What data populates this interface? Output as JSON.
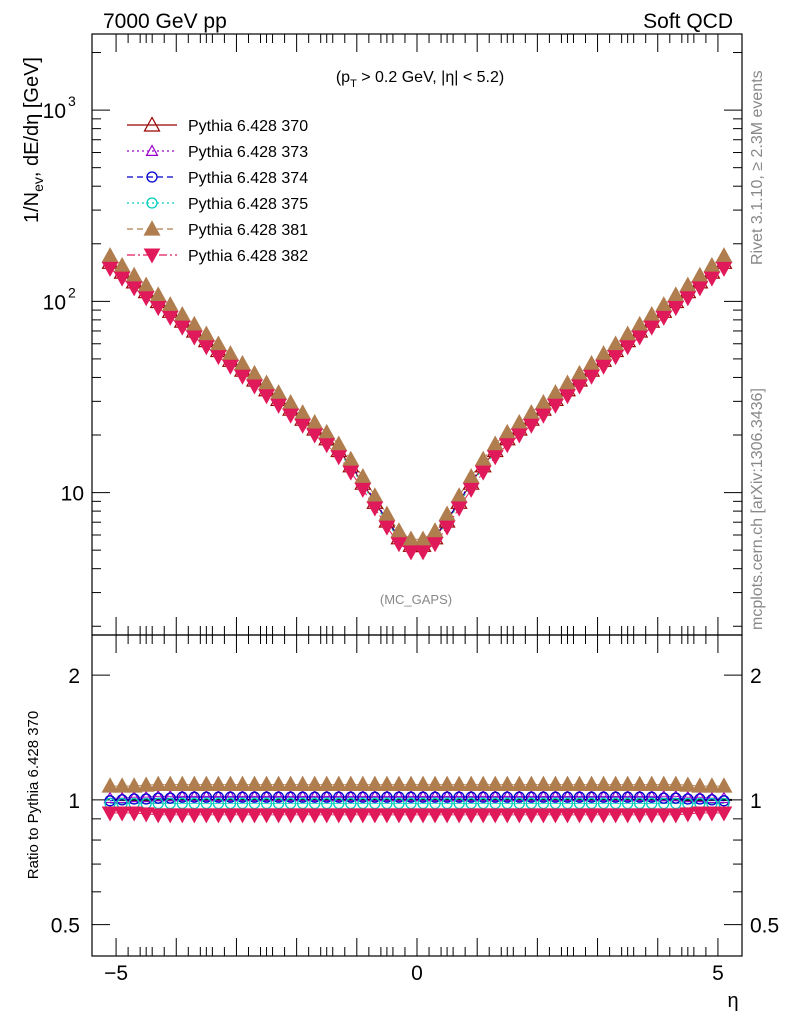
{
  "header": {
    "left": "7000 GeV pp",
    "right": "Soft QCD"
  },
  "side_text": {
    "rivet": "Rivet 3.1.10, ≥ 2.3M events",
    "mcplots": "mcplots.cern.ch [arXiv:1306.3436]"
  },
  "annotations": {
    "cut_label": "(p_T > 0.2 GeV, |η| < 5.2)",
    "cut_pre": "(p",
    "cut_sub": "T",
    "cut_post": " > 0.2 GeV, |η| < 5.2)",
    "watermark": "(MC_GAPS)"
  },
  "chart_data": [
    {
      "type": "scatter",
      "panel": "main",
      "ylabel": "1/N_ev, dE/dη [GeV]",
      "ylabel_pre": "1/N",
      "ylabel_sub": "ev",
      "ylabel_post": ", dE/dη [GeV]",
      "yscale": "log",
      "xlim": [
        -5.4,
        5.4
      ],
      "ylim": [
        1.8,
        2500
      ],
      "y_tick_labels": [
        {
          "value": 10,
          "label": "10"
        },
        {
          "value": 100,
          "label": "10",
          "exp": "2"
        },
        {
          "value": 1000,
          "label": "10",
          "exp": "3"
        }
      ],
      "legend_position": "top-left",
      "x": [
        -5.1,
        -4.9,
        -4.7,
        -4.5,
        -4.3,
        -4.1,
        -3.9,
        -3.7,
        -3.5,
        -3.3,
        -3.1,
        -2.9,
        -2.7,
        -2.5,
        -2.3,
        -2.1,
        -1.9,
        -1.7,
        -1.5,
        -1.3,
        -1.1,
        -0.9,
        -0.7,
        -0.5,
        -0.3,
        -0.1,
        0.1,
        0.3,
        0.5,
        0.7,
        0.9,
        1.1,
        1.3,
        1.5,
        1.7,
        1.9,
        2.1,
        2.3,
        2.5,
        2.7,
        2.9,
        3.1,
        3.3,
        3.5,
        3.7,
        3.9,
        4.1,
        4.3,
        4.5,
        4.7,
        4.9,
        5.1
      ],
      "series": [
        {
          "name": "Pythia 6.428 370",
          "color": "#990000",
          "marker": "triangle-open",
          "dash": "solid",
          "values": [
            160.0,
            142.2,
            126.4,
            112.3,
            99.8,
            88.7,
            78.8,
            70.0,
            62.3,
            55.3,
            49.2,
            43.7,
            38.8,
            34.5,
            30.7,
            27.3,
            24.2,
            21.5,
            19.1,
            16.6,
            13.8,
            11.2,
            8.9,
            7.1,
            5.8,
            5.3,
            5.3,
            5.8,
            7.1,
            8.9,
            11.2,
            13.8,
            16.6,
            19.1,
            21.5,
            24.2,
            27.3,
            30.7,
            34.5,
            38.8,
            43.7,
            49.2,
            55.3,
            62.3,
            70.0,
            78.8,
            88.7,
            99.8,
            112.3,
            126.4,
            142.2,
            160.0
          ]
        },
        {
          "name": "Pythia 6.428 373",
          "color": "#9900cc",
          "marker": "triangle-open-small",
          "dash": "dot",
          "values": [
            163.2,
            145.0,
            128.9,
            114.5,
            101.8,
            90.5,
            80.4,
            71.4,
            63.5,
            56.4,
            50.2,
            44.6,
            39.6,
            35.2,
            31.3,
            27.8,
            24.7,
            21.9,
            19.5,
            16.9,
            14.1,
            11.4,
            9.1,
            7.2,
            5.9,
            5.4,
            5.4,
            5.9,
            7.2,
            9.1,
            11.4,
            14.1,
            16.9,
            19.5,
            21.9,
            24.7,
            27.8,
            31.3,
            35.2,
            39.6,
            44.6,
            50.2,
            56.4,
            63.5,
            71.4,
            80.4,
            90.5,
            101.8,
            114.5,
            128.9,
            145.0,
            163.2
          ]
        },
        {
          "name": "Pythia 6.428 374",
          "color": "#0000cc",
          "marker": "circle-open",
          "dash": "dash",
          "values": [
            161.6,
            143.6,
            127.7,
            113.4,
            100.8,
            89.6,
            79.6,
            70.7,
            62.9,
            55.9,
            49.7,
            44.1,
            39.2,
            34.8,
            31.0,
            27.6,
            24.4,
            21.7,
            19.3,
            16.8,
            13.9,
            11.3,
            9.0,
            7.2,
            5.9,
            5.4,
            5.4,
            5.9,
            7.2,
            9.0,
            11.3,
            13.9,
            16.8,
            19.3,
            21.7,
            24.4,
            27.6,
            31.0,
            34.8,
            39.2,
            44.1,
            49.7,
            55.9,
            62.9,
            70.7,
            79.6,
            89.6,
            100.8,
            113.4,
            127.7,
            143.6,
            161.6
          ]
        },
        {
          "name": "Pythia 6.428 375",
          "color": "#00ccbb",
          "marker": "circle-open",
          "dash": "dot",
          "values": [
            156.8,
            139.4,
            123.9,
            110.1,
            97.8,
            86.9,
            77.2,
            68.6,
            61.1,
            54.2,
            48.2,
            42.8,
            38.0,
            33.8,
            30.1,
            26.8,
            23.7,
            21.1,
            18.7,
            16.3,
            13.5,
            11.0,
            8.7,
            7.0,
            5.7,
            5.2,
            5.2,
            5.7,
            7.0,
            8.7,
            11.0,
            13.5,
            16.3,
            18.7,
            21.1,
            23.7,
            26.8,
            30.1,
            33.8,
            38.0,
            42.8,
            48.2,
            54.2,
            61.1,
            68.6,
            77.2,
            86.9,
            97.8,
            110.1,
            123.9,
            139.4,
            156.8
          ]
        },
        {
          "name": "Pythia 6.428 381",
          "color": "#b07d4f",
          "marker": "triangle-filled",
          "dash": "dash",
          "values": [
            172.8,
            153.6,
            136.5,
            121.3,
            107.8,
            95.8,
            85.1,
            75.6,
            67.3,
            59.7,
            53.1,
            47.2,
            41.9,
            37.3,
            33.2,
            29.5,
            26.1,
            23.2,
            20.6,
            17.9,
            14.9,
            12.1,
            9.6,
            7.7,
            6.3,
            5.7,
            5.7,
            6.3,
            7.7,
            9.6,
            12.1,
            14.9,
            17.9,
            20.6,
            23.2,
            26.1,
            29.5,
            33.2,
            37.3,
            41.9,
            47.2,
            53.1,
            59.7,
            67.3,
            75.6,
            85.1,
            95.8,
            107.8,
            121.3,
            136.5,
            153.6,
            172.8
          ]
        },
        {
          "name": "Pythia 6.428 382",
          "color": "#e0195a",
          "marker": "triangle-down-filled",
          "dash": "dashdot",
          "values": [
            148.8,
            132.2,
            117.6,
            104.4,
            92.8,
            82.5,
            73.3,
            65.1,
            57.9,
            51.4,
            45.8,
            40.6,
            36.1,
            32.1,
            28.6,
            25.4,
            22.5,
            20.0,
            17.8,
            15.4,
            12.8,
            10.4,
            8.3,
            6.6,
            5.4,
            4.9,
            4.9,
            5.4,
            6.6,
            8.3,
            10.4,
            12.8,
            15.4,
            17.8,
            20.0,
            22.5,
            25.4,
            28.6,
            32.1,
            36.1,
            40.6,
            45.8,
            51.4,
            57.9,
            65.1,
            73.3,
            82.5,
            92.8,
            104.4,
            117.6,
            132.2,
            148.8
          ]
        }
      ]
    },
    {
      "type": "scatter",
      "panel": "ratio",
      "ylabel": "Ratio to Pythia 6.428 370",
      "xlabel": "η",
      "yscale": "log",
      "xlim": [
        -5.4,
        5.4
      ],
      "ylim": [
        0.42,
        2.5
      ],
      "y_tick_labels": [
        {
          "value": 0.5,
          "label": "0.5"
        },
        {
          "value": 1,
          "label": "1"
        },
        {
          "value": 2,
          "label": "2"
        }
      ],
      "x_tick_labels": [
        {
          "value": -5,
          "label": "−5"
        },
        {
          "value": 0,
          "label": "0"
        },
        {
          "value": 5,
          "label": "5"
        }
      ],
      "x": [
        -5.1,
        -4.9,
        -4.7,
        -4.5,
        -4.3,
        -4.1,
        -3.9,
        -3.7,
        -3.5,
        -3.3,
        -3.1,
        -2.9,
        -2.7,
        -2.5,
        -2.3,
        -2.1,
        -1.9,
        -1.7,
        -1.5,
        -1.3,
        -1.1,
        -0.9,
        -0.7,
        -0.5,
        -0.3,
        -0.1,
        0.1,
        0.3,
        0.5,
        0.7,
        0.9,
        1.1,
        1.3,
        1.5,
        1.7,
        1.9,
        2.1,
        2.3,
        2.5,
        2.7,
        2.9,
        3.1,
        3.3,
        3.5,
        3.7,
        3.9,
        4.1,
        4.3,
        4.5,
        4.7,
        4.9,
        5.1
      ],
      "series": [
        {
          "name": "Pythia 6.428 370",
          "color": "#990000",
          "marker": "line",
          "values": [
            1.0,
            1.0,
            1.0,
            1.0,
            1.0,
            1.0,
            1.0,
            1.0,
            1.0,
            1.0,
            1.0,
            1.0,
            1.0,
            1.0,
            1.0,
            1.0,
            1.0,
            1.0,
            1.0,
            1.0,
            1.0,
            1.0,
            1.0,
            1.0,
            1.0,
            1.0,
            1.0,
            1.0,
            1.0,
            1.0,
            1.0,
            1.0,
            1.0,
            1.0,
            1.0,
            1.0,
            1.0,
            1.0,
            1.0,
            1.0,
            1.0,
            1.0,
            1.0,
            1.0,
            1.0,
            1.0,
            1.0,
            1.0,
            1.0,
            1.0,
            1.0,
            1.0
          ]
        },
        {
          "name": "Pythia 6.428 373",
          "color": "#9900cc",
          "marker": "triangle-open-small",
          "values": [
            1.01,
            1.01,
            1.015,
            1.015,
            1.02,
            1.02,
            1.02,
            1.02,
            1.02,
            1.02,
            1.02,
            1.02,
            1.02,
            1.02,
            1.02,
            1.02,
            1.02,
            1.02,
            1.02,
            1.02,
            1.02,
            1.02,
            1.02,
            1.02,
            1.02,
            1.02,
            1.02,
            1.02,
            1.02,
            1.02,
            1.02,
            1.02,
            1.02,
            1.02,
            1.02,
            1.02,
            1.02,
            1.02,
            1.02,
            1.02,
            1.02,
            1.02,
            1.02,
            1.02,
            1.02,
            1.02,
            1.02,
            1.02,
            1.015,
            1.015,
            1.01,
            1.01
          ]
        },
        {
          "name": "Pythia 6.428 374",
          "color": "#0000cc",
          "marker": "circle-open",
          "values": [
            0.995,
            1.0,
            1.005,
            1.005,
            1.01,
            1.01,
            1.015,
            1.015,
            1.015,
            1.015,
            1.015,
            1.015,
            1.015,
            1.015,
            1.015,
            1.015,
            1.015,
            1.015,
            1.015,
            1.015,
            1.015,
            1.015,
            1.015,
            1.015,
            1.015,
            1.015,
            1.015,
            1.015,
            1.015,
            1.015,
            1.015,
            1.015,
            1.015,
            1.015,
            1.015,
            1.015,
            1.015,
            1.015,
            1.015,
            1.015,
            1.015,
            1.015,
            1.015,
            1.015,
            1.015,
            1.015,
            1.01,
            1.01,
            1.005,
            1.005,
            1.0,
            0.995
          ]
        },
        {
          "name": "Pythia 6.428 375",
          "color": "#00ccbb",
          "marker": "circle-open",
          "values": [
            0.98,
            0.98,
            0.98,
            0.98,
            0.98,
            0.98,
            0.98,
            0.98,
            0.98,
            0.98,
            0.98,
            0.98,
            0.98,
            0.98,
            0.98,
            0.98,
            0.98,
            0.98,
            0.98,
            0.98,
            0.98,
            0.98,
            0.98,
            0.98,
            0.98,
            0.98,
            0.98,
            0.98,
            0.98,
            0.98,
            0.98,
            0.98,
            0.98,
            0.98,
            0.98,
            0.98,
            0.98,
            0.98,
            0.98,
            0.98,
            0.98,
            0.98,
            0.98,
            0.98,
            0.98,
            0.98,
            0.98,
            0.98,
            0.98,
            0.98,
            0.98,
            0.98
          ]
        },
        {
          "name": "Pythia 6.428 381",
          "color": "#b07d4f",
          "marker": "triangle-filled",
          "values": [
            1.08,
            1.08,
            1.08,
            1.085,
            1.09,
            1.09,
            1.09,
            1.09,
            1.09,
            1.09,
            1.09,
            1.09,
            1.09,
            1.09,
            1.09,
            1.09,
            1.09,
            1.09,
            1.09,
            1.09,
            1.09,
            1.09,
            1.09,
            1.09,
            1.09,
            1.09,
            1.09,
            1.09,
            1.09,
            1.09,
            1.09,
            1.09,
            1.09,
            1.09,
            1.09,
            1.09,
            1.09,
            1.09,
            1.09,
            1.09,
            1.09,
            1.09,
            1.09,
            1.09,
            1.09,
            1.09,
            1.09,
            1.09,
            1.085,
            1.08,
            1.08,
            1.08
          ]
        },
        {
          "name": "Pythia 6.428 382",
          "color": "#e0195a",
          "marker": "triangle-down-filled",
          "values": [
            0.93,
            0.93,
            0.93,
            0.925,
            0.92,
            0.92,
            0.92,
            0.92,
            0.92,
            0.92,
            0.92,
            0.92,
            0.92,
            0.92,
            0.92,
            0.92,
            0.92,
            0.92,
            0.92,
            0.92,
            0.92,
            0.92,
            0.92,
            0.92,
            0.92,
            0.92,
            0.92,
            0.92,
            0.92,
            0.92,
            0.92,
            0.92,
            0.92,
            0.92,
            0.92,
            0.92,
            0.92,
            0.92,
            0.92,
            0.92,
            0.92,
            0.92,
            0.92,
            0.92,
            0.92,
            0.92,
            0.92,
            0.92,
            0.925,
            0.93,
            0.93,
            0.93
          ]
        }
      ]
    }
  ]
}
